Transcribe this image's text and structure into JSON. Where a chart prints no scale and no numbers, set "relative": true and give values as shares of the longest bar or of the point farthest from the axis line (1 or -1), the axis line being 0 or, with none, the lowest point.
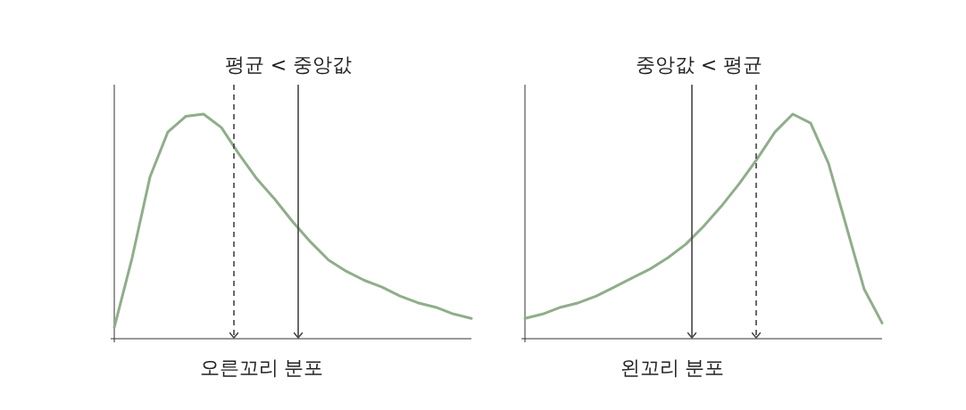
{
  "chart_data": [
    {
      "type": "line",
      "title": "평균 < 중앙값",
      "xlabel": "오른꼬리 분포",
      "relative": true,
      "categories": [
        null,
        null,
        null,
        null,
        null,
        null,
        null,
        null,
        null,
        null,
        null,
        null,
        null,
        null,
        null,
        null,
        null,
        null,
        null,
        null,
        null
      ],
      "series": [
        {
          "color": "#8fae8a",
          "values": [
            0.05,
            0.36,
            0.72,
            0.92,
            0.99,
            1.0,
            0.94,
            0.82,
            0.71,
            0.62,
            0.52,
            0.43,
            0.35,
            0.3,
            0.26,
            0.23,
            0.19,
            0.16,
            0.14,
            0.11,
            0.09
          ]
        }
      ]
    },
    {
      "type": "line",
      "title": "중앙값 < 평균",
      "xlabel": "왼꼬리 분포",
      "relative": true,
      "categories": [
        null,
        null,
        null,
        null,
        null,
        null,
        null,
        null,
        null,
        null,
        null,
        null,
        null,
        null,
        null,
        null,
        null,
        null,
        null,
        null,
        null
      ],
      "series": [
        {
          "color": "#8fae8a",
          "values": [
            0.09,
            0.11,
            0.14,
            0.16,
            0.19,
            0.23,
            0.27,
            0.31,
            0.36,
            0.42,
            0.5,
            0.59,
            0.69,
            0.8,
            0.92,
            1.0,
            0.96,
            0.78,
            0.5,
            0.22,
            0.07
          ]
        }
      ]
    }
  ]
}
